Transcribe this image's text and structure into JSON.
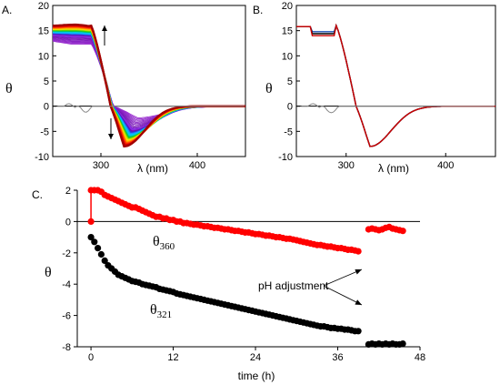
{
  "chart_data": [
    {
      "panel": "A.",
      "type": "line",
      "ylabel": "θ",
      "xlabel": "λ (nm)",
      "xlim": [
        250,
        450
      ],
      "ylim": [
        -10,
        20
      ],
      "xticks": [
        300,
        400
      ],
      "yticks": [
        -10,
        -5,
        0,
        5,
        10,
        15,
        20
      ],
      "series_count": 26,
      "series_colors_from": "#6a0dad",
      "series_colors_to": "#a00000",
      "buffer_trace_color": "#888888"
    },
    {
      "panel": "B.",
      "type": "line",
      "ylabel": "θ",
      "xlabel": "λ (nm)",
      "xlim": [
        250,
        450
      ],
      "ylim": [
        -10,
        20
      ],
      "xticks": [
        300,
        400
      ],
      "yticks": [
        -10,
        -5,
        0,
        5,
        10,
        15,
        20
      ],
      "series_colors": [
        "#1a4fb5",
        "#000000",
        "#cc0000"
      ],
      "buffer_trace_color": "#888888"
    },
    {
      "panel": "C.",
      "type": "scatter",
      "ylabel": "θ",
      "xlabel": "time (h)",
      "xlim": [
        -2,
        48
      ],
      "ylim": [
        -8,
        2
      ],
      "xticks": [
        0,
        12,
        24,
        36,
        48
      ],
      "yticks": [
        -8,
        -6,
        -4,
        -2,
        0,
        2
      ],
      "annotation": "pH adjustment",
      "series": [
        {
          "label_main": "θ",
          "label_sub": "360",
          "color": "#ff0000",
          "points": [
            [
              0,
              0
            ],
            [
              0,
              2
            ],
            [
              0.5,
              2
            ],
            [
              1,
              2
            ],
            [
              1.5,
              1.9
            ],
            [
              2,
              1.7
            ],
            [
              2.5,
              1.6
            ],
            [
              3,
              1.5
            ],
            [
              3.5,
              1.4
            ],
            [
              4,
              1.3
            ],
            [
              4.5,
              1.2
            ],
            [
              5,
              1.1
            ],
            [
              5.5,
              1.0
            ],
            [
              6,
              0.9
            ],
            [
              6.5,
              0.9
            ],
            [
              7,
              0.8
            ],
            [
              7.5,
              0.7
            ],
            [
              8,
              0.6
            ],
            [
              8.5,
              0.5
            ],
            [
              9,
              0.4
            ],
            [
              9.5,
              0.3
            ],
            [
              10,
              0.3
            ],
            [
              10.5,
              0.2
            ],
            [
              11,
              0.2
            ],
            [
              11.5,
              0.1
            ],
            [
              12,
              0.1
            ],
            [
              12.5,
              0
            ],
            [
              13,
              0
            ],
            [
              13.5,
              -0.1
            ],
            [
              14,
              -0.1
            ],
            [
              14.5,
              -0.15
            ],
            [
              15,
              -0.2
            ],
            [
              15.5,
              -0.2
            ],
            [
              16,
              -0.25
            ],
            [
              16.5,
              -0.3
            ],
            [
              17,
              -0.3
            ],
            [
              17.5,
              -0.35
            ],
            [
              18,
              -0.4
            ],
            [
              18.5,
              -0.4
            ],
            [
              19,
              -0.45
            ],
            [
              19.5,
              -0.5
            ],
            [
              20,
              -0.5
            ],
            [
              20.5,
              -0.55
            ],
            [
              21,
              -0.6
            ],
            [
              21.5,
              -0.6
            ],
            [
              22,
              -0.65
            ],
            [
              22.5,
              -0.7
            ],
            [
              23,
              -0.7
            ],
            [
              23.5,
              -0.75
            ],
            [
              24,
              -0.8
            ],
            [
              24.5,
              -0.8
            ],
            [
              25,
              -0.85
            ],
            [
              25.5,
              -0.9
            ],
            [
              26,
              -0.9
            ],
            [
              26.5,
              -0.95
            ],
            [
              27,
              -1.0
            ],
            [
              27.5,
              -1.0
            ],
            [
              28,
              -1.05
            ],
            [
              28.5,
              -1.1
            ],
            [
              29,
              -1.1
            ],
            [
              29.5,
              -1.15
            ],
            [
              30,
              -1.2
            ],
            [
              30.5,
              -1.25
            ],
            [
              31,
              -1.3
            ],
            [
              31.5,
              -1.35
            ],
            [
              32,
              -1.4
            ],
            [
              32.5,
              -1.45
            ],
            [
              33,
              -1.5
            ],
            [
              33.5,
              -1.5
            ],
            [
              34,
              -1.55
            ],
            [
              34.5,
              -1.6
            ],
            [
              35,
              -1.6
            ],
            [
              35.5,
              -1.65
            ],
            [
              36,
              -1.7
            ],
            [
              36.5,
              -1.7
            ],
            [
              37,
              -1.75
            ],
            [
              37.5,
              -1.8
            ],
            [
              38,
              -1.8
            ],
            [
              38.5,
              -1.85
            ],
            [
              39,
              -1.9
            ],
            [
              40.5,
              -0.5
            ],
            [
              41,
              -0.45
            ],
            [
              41.5,
              -0.5
            ],
            [
              42,
              -0.55
            ],
            [
              42.5,
              -0.5
            ],
            [
              43,
              -0.4
            ],
            [
              43.5,
              -0.35
            ],
            [
              44,
              -0.45
            ],
            [
              44.5,
              -0.5
            ],
            [
              45,
              -0.55
            ],
            [
              45.5,
              -0.6
            ]
          ]
        },
        {
          "label_main": "θ",
          "label_sub": "321",
          "color": "#000000",
          "points": [
            [
              0,
              -1
            ],
            [
              0.5,
              -1.3
            ],
            [
              1,
              -1.7
            ],
            [
              1.5,
              -2.1
            ],
            [
              2,
              -2.5
            ],
            [
              2.5,
              -2.8
            ],
            [
              3,
              -3.0
            ],
            [
              3.5,
              -3.2
            ],
            [
              4,
              -3.4
            ],
            [
              4.5,
              -3.5
            ],
            [
              5,
              -3.6
            ],
            [
              5.5,
              -3.7
            ],
            [
              6,
              -3.8
            ],
            [
              6.5,
              -3.85
            ],
            [
              7,
              -3.9
            ],
            [
              7.5,
              -4.0
            ],
            [
              8,
              -4.05
            ],
            [
              8.5,
              -4.1
            ],
            [
              9,
              -4.15
            ],
            [
              9.5,
              -4.2
            ],
            [
              10,
              -4.3
            ],
            [
              10.5,
              -4.35
            ],
            [
              11,
              -4.4
            ],
            [
              11.5,
              -4.45
            ],
            [
              12,
              -4.5
            ],
            [
              12.5,
              -4.6
            ],
            [
              13,
              -4.65
            ],
            [
              13.5,
              -4.7
            ],
            [
              14,
              -4.75
            ],
            [
              14.5,
              -4.8
            ],
            [
              15,
              -4.85
            ],
            [
              15.5,
              -4.9
            ],
            [
              16,
              -4.95
            ],
            [
              16.5,
              -5.0
            ],
            [
              17,
              -5.05
            ],
            [
              17.5,
              -5.1
            ],
            [
              18,
              -5.15
            ],
            [
              18.5,
              -5.2
            ],
            [
              19,
              -5.25
            ],
            [
              19.5,
              -5.3
            ],
            [
              20,
              -5.35
            ],
            [
              20.5,
              -5.4
            ],
            [
              21,
              -5.45
            ],
            [
              21.5,
              -5.5
            ],
            [
              22,
              -5.55
            ],
            [
              22.5,
              -5.6
            ],
            [
              23,
              -5.65
            ],
            [
              23.5,
              -5.7
            ],
            [
              24,
              -5.75
            ],
            [
              24.5,
              -5.8
            ],
            [
              25,
              -5.85
            ],
            [
              25.5,
              -5.9
            ],
            [
              26,
              -5.95
            ],
            [
              26.5,
              -6.0
            ],
            [
              27,
              -6.05
            ],
            [
              27.5,
              -6.1
            ],
            [
              28,
              -6.15
            ],
            [
              28.5,
              -6.2
            ],
            [
              29,
              -6.25
            ],
            [
              29.5,
              -6.3
            ],
            [
              30,
              -6.35
            ],
            [
              30.5,
              -6.4
            ],
            [
              31,
              -6.45
            ],
            [
              31.5,
              -6.5
            ],
            [
              32,
              -6.55
            ],
            [
              32.5,
              -6.6
            ],
            [
              33,
              -6.65
            ],
            [
              33.5,
              -6.7
            ],
            [
              34,
              -6.7
            ],
            [
              34.5,
              -6.75
            ],
            [
              35,
              -6.8
            ],
            [
              35.5,
              -6.8
            ],
            [
              36,
              -6.85
            ],
            [
              36.5,
              -6.85
            ],
            [
              37,
              -6.9
            ],
            [
              37.5,
              -6.9
            ],
            [
              38,
              -6.95
            ],
            [
              38.5,
              -7.0
            ],
            [
              39,
              -7.0
            ],
            [
              40.5,
              -7.85
            ],
            [
              41,
              -7.8
            ],
            [
              41.5,
              -7.85
            ],
            [
              42,
              -7.8
            ],
            [
              42.5,
              -7.85
            ],
            [
              43,
              -7.8
            ],
            [
              43.5,
              -7.85
            ],
            [
              44,
              -7.8
            ],
            [
              44.5,
              -7.85
            ],
            [
              45,
              -7.85
            ],
            [
              45.5,
              -7.8
            ]
          ]
        }
      ]
    }
  ]
}
